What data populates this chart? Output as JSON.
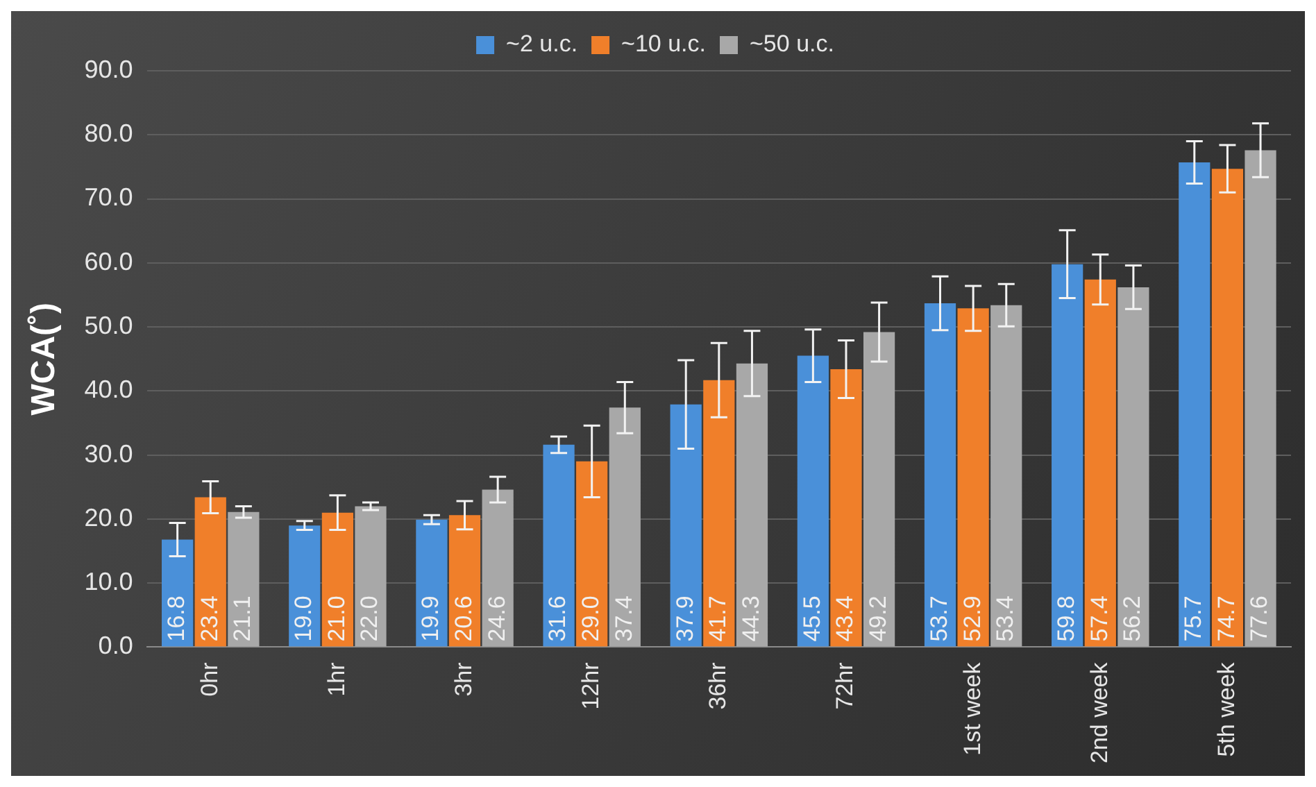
{
  "chart_data": {
    "type": "bar",
    "ylabel": "WCA(˚)",
    "categories": [
      "0hr",
      "1hr",
      "3hr",
      "12hr",
      "36hr",
      "72hr",
      "1st week",
      "2nd week",
      "5th week"
    ],
    "series": [
      {
        "name": "~2 u.c.",
        "color": "#4a90d9",
        "values": [
          16.8,
          19.0,
          19.9,
          31.6,
          37.9,
          45.5,
          53.7,
          59.8,
          75.7
        ],
        "errors": [
          2.6,
          0.7,
          0.7,
          1.3,
          6.9,
          4.1,
          4.2,
          5.3,
          3.3
        ],
        "value_labels": [
          "16.8",
          "19.0",
          "19.9",
          "31.6",
          "37.9",
          "45.5",
          "53.7",
          "59.8",
          "75.7"
        ]
      },
      {
        "name": "~10 u.c.",
        "color": "#f07f2a",
        "values": [
          23.4,
          21.0,
          20.6,
          29.0,
          41.7,
          43.4,
          52.9,
          57.4,
          74.7
        ],
        "errors": [
          2.5,
          2.7,
          2.2,
          5.6,
          5.8,
          4.5,
          3.5,
          3.9,
          3.7
        ],
        "value_labels": [
          "23.4",
          "21.0",
          "20.6",
          "29.0",
          "41.7",
          "43.4",
          "52.9",
          "57.4",
          "74.7"
        ]
      },
      {
        "name": "~50 u.c.",
        "color": "#a8a8a8",
        "values": [
          21.1,
          22.0,
          24.6,
          37.4,
          44.3,
          49.2,
          53.4,
          56.2,
          77.6
        ],
        "errors": [
          0.9,
          0.6,
          2.0,
          4.0,
          5.1,
          4.6,
          3.3,
          3.4,
          4.2
        ],
        "value_labels": [
          "21.1",
          "22.0",
          "24.6",
          "37.4",
          "44.3",
          "49.2",
          "53.4",
          "56.2",
          "77.6"
        ]
      }
    ],
    "ylim": [
      0,
      90
    ],
    "yticks": [
      {
        "value": 0,
        "label": "0.0"
      },
      {
        "value": 10,
        "label": "10.0"
      },
      {
        "value": 20,
        "label": "20.0"
      },
      {
        "value": 30,
        "label": "30.0"
      },
      {
        "value": 40,
        "label": "40.0"
      },
      {
        "value": 50,
        "label": "50.0"
      },
      {
        "value": 60,
        "label": "60.0"
      },
      {
        "value": 70,
        "label": "70.0"
      },
      {
        "value": 80,
        "label": "80.0"
      },
      {
        "value": 90,
        "label": "90.0"
      }
    ],
    "grid": "y",
    "legend": "top"
  }
}
